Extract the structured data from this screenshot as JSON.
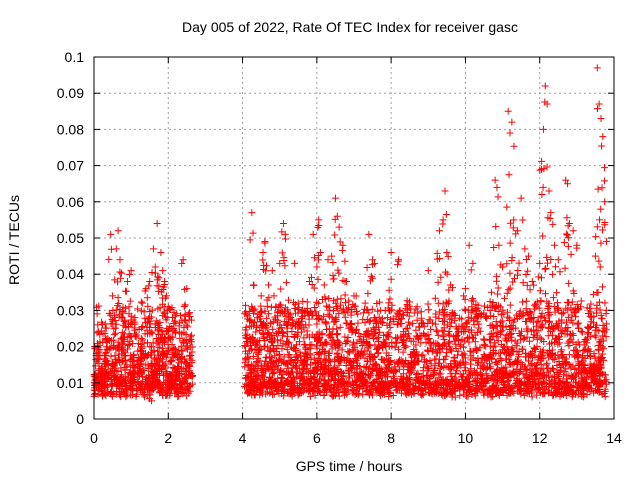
{
  "chart_data": {
    "type": "scatter",
    "title": "Day 005 of 2022, Rate Of TEC Index for receiver gasc",
    "xlabel": "GPS time / hours",
    "ylabel": "ROTI / TECUs",
    "xlim": [
      0,
      14
    ],
    "ylim": [
      0,
      0.1
    ],
    "xticks": [
      0,
      2,
      4,
      6,
      8,
      10,
      12,
      14
    ],
    "xtick_labels": [
      "0",
      "2",
      "4",
      "6",
      "8",
      "10",
      "12",
      "14"
    ],
    "yticks": [
      0,
      0.01,
      0.02,
      0.03,
      0.04,
      0.05,
      0.06,
      0.07,
      0.08,
      0.09,
      0.1
    ],
    "ytick_labels": [
      "0",
      "0.01",
      "0.02",
      "0.03",
      "0.04",
      "0.05",
      "0.06",
      "0.07",
      "0.08",
      "0.09",
      "0.1"
    ],
    "grid": true,
    "marker": "+",
    "color": "#ff0000",
    "series": [
      {
        "points": [
          [
            0.05,
            0.011
          ],
          [
            0.1,
            0.026
          ],
          [
            0.15,
            0.009
          ],
          [
            0.2,
            0.014
          ],
          [
            0.3,
            0.018
          ],
          [
            0.4,
            0.012
          ],
          [
            0.45,
            0.051
          ],
          [
            0.5,
            0.034
          ],
          [
            0.55,
            0.028
          ],
          [
            0.6,
            0.047
          ],
          [
            0.65,
            0.052
          ],
          [
            0.7,
            0.044
          ],
          [
            0.75,
            0.009
          ],
          [
            0.8,
            0.022
          ],
          [
            0.9,
            0.038
          ],
          [
            1.0,
            0.041
          ],
          [
            1.05,
            0.013
          ],
          [
            1.1,
            0.028
          ],
          [
            1.2,
            0.017
          ],
          [
            1.3,
            0.032
          ],
          [
            1.4,
            0.036
          ],
          [
            1.45,
            0.008
          ],
          [
            1.5,
            0.038
          ],
          [
            1.55,
            0.005
          ],
          [
            1.6,
            0.047
          ],
          [
            1.65,
            0.042
          ],
          [
            1.7,
            0.054
          ],
          [
            1.75,
            0.039
          ],
          [
            1.8,
            0.046
          ],
          [
            1.85,
            0.041
          ],
          [
            1.9,
            0.038
          ],
          [
            1.95,
            0.034
          ],
          [
            2.0,
            0.031
          ],
          [
            2.1,
            0.025
          ],
          [
            2.2,
            0.018
          ],
          [
            2.3,
            0.024
          ],
          [
            2.4,
            0.044
          ],
          [
            2.5,
            0.036
          ],
          [
            2.55,
            0.029
          ],
          [
            2.6,
            0.012
          ],
          [
            4.1,
            0.029
          ],
          [
            4.2,
            0.022
          ],
          [
            4.25,
            0.057
          ],
          [
            4.3,
            0.037
          ],
          [
            4.4,
            0.028
          ],
          [
            4.5,
            0.034
          ],
          [
            4.55,
            0.046
          ],
          [
            4.6,
            0.049
          ],
          [
            4.7,
            0.037
          ],
          [
            4.8,
            0.041
          ],
          [
            4.9,
            0.031
          ],
          [
            5.0,
            0.043
          ],
          [
            5.1,
            0.054
          ],
          [
            5.15,
            0.051
          ],
          [
            5.2,
            0.026
          ],
          [
            5.3,
            0.008
          ],
          [
            5.4,
            0.043
          ],
          [
            5.5,
            0.032
          ],
          [
            5.6,
            0.027
          ],
          [
            5.7,
            0.026
          ],
          [
            5.8,
            0.038
          ],
          [
            5.9,
            0.051
          ],
          [
            6.0,
            0.042
          ],
          [
            6.05,
            0.055
          ],
          [
            6.1,
            0.046
          ],
          [
            6.2,
            0.037
          ],
          [
            6.3,
            0.044
          ],
          [
            6.4,
            0.045
          ],
          [
            6.5,
            0.061
          ],
          [
            6.55,
            0.056
          ],
          [
            6.6,
            0.053
          ],
          [
            6.7,
            0.048
          ],
          [
            6.8,
            0.038
          ],
          [
            7.0,
            0.034
          ],
          [
            7.1,
            0.029
          ],
          [
            7.2,
            0.013
          ],
          [
            7.3,
            0.032
          ],
          [
            7.4,
            0.051
          ],
          [
            7.5,
            0.044
          ],
          [
            7.6,
            0.027
          ],
          [
            7.7,
            0.012
          ],
          [
            7.8,
            0.021
          ],
          [
            7.9,
            0.028
          ],
          [
            8.0,
            0.046
          ],
          [
            8.2,
            0.044
          ],
          [
            8.5,
            0.026
          ],
          [
            8.7,
            0.031
          ],
          [
            9.0,
            0.041
          ],
          [
            9.2,
            0.029
          ],
          [
            9.3,
            0.052
          ],
          [
            9.4,
            0.055
          ],
          [
            9.45,
            0.063
          ],
          [
            9.5,
            0.046
          ],
          [
            9.6,
            0.037
          ],
          [
            9.8,
            0.024
          ],
          [
            10.0,
            0.036
          ],
          [
            10.1,
            0.048
          ],
          [
            10.2,
            0.043
          ],
          [
            10.3,
            0.029
          ],
          [
            10.5,
            0.022
          ],
          [
            10.7,
            0.035
          ],
          [
            10.8,
            0.066
          ],
          [
            10.85,
            0.064
          ],
          [
            10.9,
            0.048
          ],
          [
            11.0,
            0.042
          ],
          [
            11.1,
            0.023
          ],
          [
            11.15,
            0.085
          ],
          [
            11.2,
            0.079
          ],
          [
            11.25,
            0.082
          ],
          [
            11.3,
            0.055
          ],
          [
            11.4,
            0.052
          ],
          [
            11.5,
            0.061
          ],
          [
            11.6,
            0.047
          ],
          [
            11.7,
            0.045
          ],
          [
            11.8,
            0.038
          ],
          [
            11.9,
            0.031
          ],
          [
            12.0,
            0.043
          ],
          [
            12.05,
            0.069
          ],
          [
            12.1,
            0.08
          ],
          [
            12.15,
            0.092
          ],
          [
            12.2,
            0.087
          ],
          [
            12.25,
            0.063
          ],
          [
            12.3,
            0.057
          ],
          [
            12.4,
            0.048
          ],
          [
            12.5,
            0.044
          ],
          [
            12.6,
            0.029
          ],
          [
            12.7,
            0.066
          ],
          [
            12.75,
            0.065
          ],
          [
            12.8,
            0.054
          ],
          [
            12.9,
            0.052
          ],
          [
            13.0,
            0.048
          ],
          [
            13.1,
            0.031
          ],
          [
            13.2,
            0.019
          ],
          [
            13.4,
            0.014
          ],
          [
            13.5,
            0.045
          ],
          [
            13.55,
            0.097
          ],
          [
            13.6,
            0.087
          ],
          [
            13.65,
            0.083
          ],
          [
            13.7,
            0.078
          ],
          [
            13.75,
            0.06
          ]
        ],
        "bulk": [
          {
            "x_range": [
              0.0,
              2.65
            ],
            "y_range": [
              0.004,
              0.027
            ],
            "n": 700
          },
          {
            "x_range": [
              4.05,
              13.8
            ],
            "y_range": [
              0.004,
              0.028
            ],
            "n": 2600
          }
        ]
      }
    ]
  }
}
